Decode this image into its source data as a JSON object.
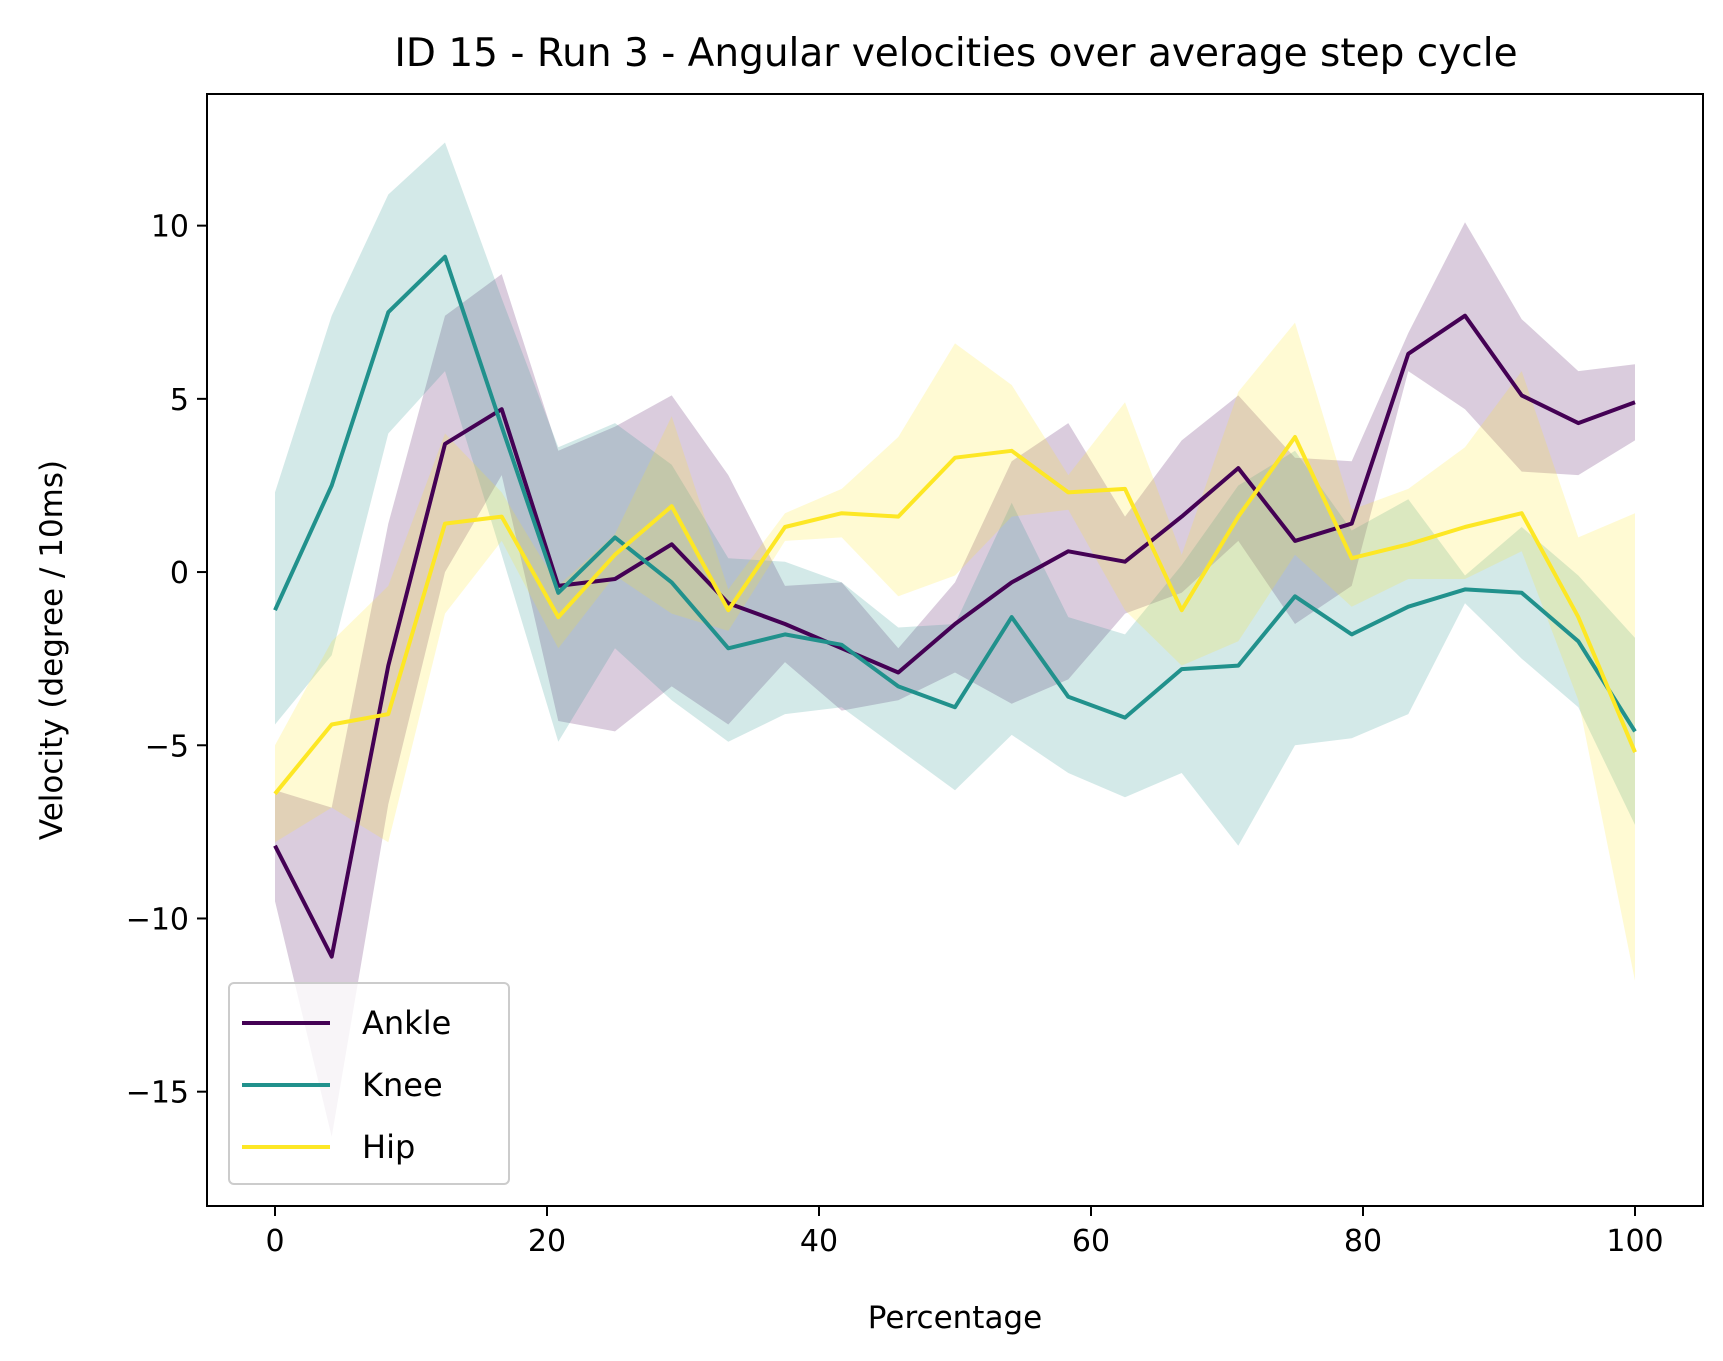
{
  "chart_data": {
    "type": "line",
    "title": "ID 15 - Run 3 - Angular velocities over average step cycle",
    "xlabel": "Percentage",
    "ylabel": "Velocity (degree / 10ms)",
    "xlim": [
      -5,
      105
    ],
    "ylim": [
      -18.3,
      13.8
    ],
    "xticks": [
      0,
      20,
      40,
      60,
      80,
      100
    ],
    "yticks": [
      -15,
      -10,
      -5,
      0,
      5,
      10
    ],
    "grid": false,
    "legend_position": "lower left",
    "x": [
      0,
      4.17,
      8.33,
      12.5,
      16.67,
      20.83,
      25,
      29.17,
      33.33,
      37.5,
      41.67,
      45.83,
      50,
      54.17,
      58.33,
      62.5,
      66.67,
      70.83,
      75,
      79.17,
      83.33,
      87.5,
      91.67,
      95.83,
      100
    ],
    "series": [
      {
        "name": "Ankle",
        "color": "#440154",
        "values": [
          -7.9,
          -11.1,
          -2.7,
          3.7,
          4.7,
          -0.4,
          -0.2,
          0.8,
          -0.9,
          -1.5,
          -2.2,
          -2.9,
          -1.5,
          -0.3,
          0.6,
          0.3,
          1.6,
          3.0,
          0.9,
          1.4,
          6.3,
          7.4,
          5.1,
          4.3,
          4.9
        ],
        "lower": [
          -9.5,
          -16.3,
          -6.7,
          0.0,
          2.8,
          -4.3,
          -4.6,
          -3.3,
          -4.4,
          -2.6,
          -4.0,
          -3.7,
          -2.9,
          -3.8,
          -3.1,
          -1.2,
          -0.6,
          0.9,
          -1.5,
          -0.4,
          5.8,
          4.7,
          2.9,
          2.8,
          3.8
        ],
        "upper": [
          -6.3,
          -6.8,
          1.4,
          7.4,
          8.6,
          3.5,
          4.2,
          5.1,
          2.8,
          -0.4,
          -0.3,
          -2.2,
          -0.3,
          3.2,
          4.3,
          1.6,
          3.8,
          5.1,
          3.3,
          3.2,
          6.9,
          10.1,
          7.3,
          5.8,
          6.0
        ]
      },
      {
        "name": "Knee",
        "color": "#21918c",
        "values": [
          -1.1,
          2.5,
          7.5,
          9.1,
          4.2,
          -0.6,
          1.0,
          -0.3,
          -2.2,
          -1.8,
          -2.1,
          -3.3,
          -3.9,
          -1.3,
          -3.6,
          -4.2,
          -2.8,
          -2.7,
          -0.7,
          -1.8,
          -1.0,
          -0.5,
          -0.6,
          -2.0,
          -4.6
        ],
        "lower": [
          -4.4,
          -2.4,
          4.0,
          5.8,
          0.5,
          -4.9,
          -2.2,
          -3.7,
          -4.9,
          -4.1,
          -3.9,
          -5.1,
          -6.3,
          -4.7,
          -5.8,
          -6.5,
          -5.8,
          -7.9,
          -5.0,
          -4.8,
          -4.1,
          -0.9,
          -2.5,
          -3.9,
          -7.3
        ],
        "upper": [
          2.3,
          7.4,
          10.9,
          12.4,
          7.9,
          3.6,
          4.3,
          3.1,
          0.4,
          0.3,
          -0.3,
          -1.6,
          -1.5,
          2.0,
          -1.3,
          -1.8,
          0.2,
          2.5,
          3.5,
          1.2,
          2.1,
          -0.1,
          1.3,
          -0.1,
          -1.9
        ]
      },
      {
        "name": "Hip",
        "color": "#fde725",
        "values": [
          -6.4,
          -4.4,
          -4.1,
          1.4,
          1.6,
          -1.3,
          0.5,
          1.9,
          -1.1,
          1.3,
          1.7,
          1.6,
          3.3,
          3.5,
          2.3,
          2.4,
          -1.1,
          1.6,
          3.9,
          0.4,
          0.8,
          1.3,
          1.7,
          -1.3,
          -5.2
        ],
        "lower": [
          -7.8,
          -6.8,
          -7.8,
          -1.2,
          0.9,
          -2.2,
          -0.1,
          -1.2,
          -1.7,
          0.9,
          1.0,
          -0.7,
          -0.1,
          1.6,
          1.8,
          -1.1,
          -2.7,
          -2.0,
          0.5,
          -1.0,
          -0.2,
          -0.2,
          0.6,
          -3.7,
          -11.8
        ],
        "upper": [
          -5.0,
          -2.0,
          -0.4,
          4.0,
          2.3,
          -0.4,
          1.1,
          4.5,
          -0.5,
          1.7,
          2.4,
          3.9,
          6.6,
          5.4,
          2.8,
          4.9,
          0.5,
          5.2,
          7.2,
          1.8,
          2.4,
          3.6,
          5.8,
          1.0,
          1.7
        ]
      }
    ]
  }
}
